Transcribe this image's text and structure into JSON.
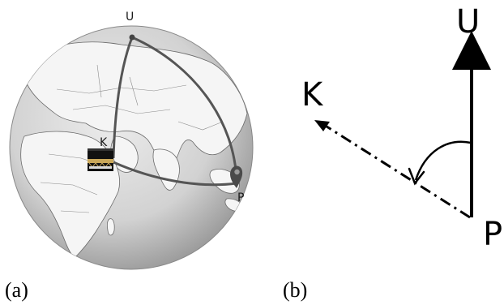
{
  "panel_a": {
    "caption": "(a)",
    "points": {
      "north_label": "U",
      "kaaba_label": "K",
      "observer_label": "P"
    }
  },
  "panel_b": {
    "caption": "(b)",
    "labels": {
      "north": "U",
      "kaaba": "K",
      "observer": "P"
    }
  },
  "colors": {
    "ocean": "#dcdcdc",
    "land": "#f4f4f4",
    "path": "#555555",
    "ink": "#000000"
  }
}
